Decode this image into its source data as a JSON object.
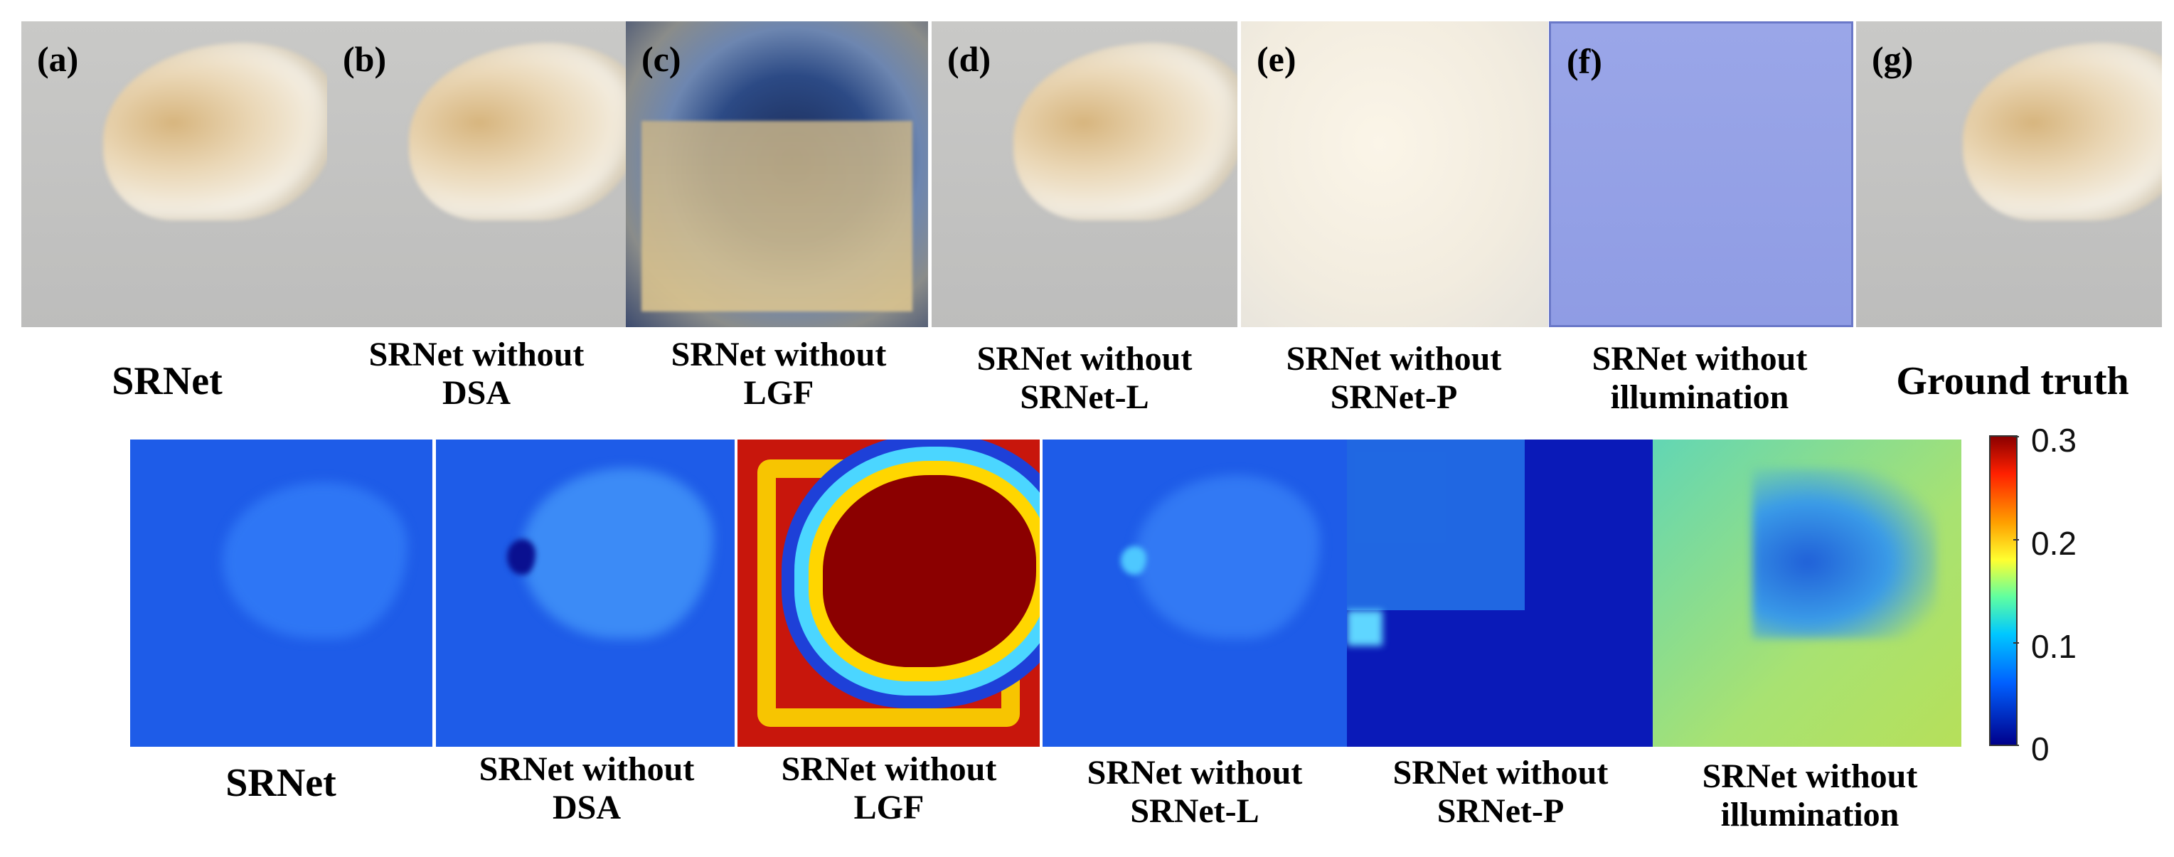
{
  "top_row": [
    {
      "tag": "(a)",
      "caption_lines": [
        "SRNet"
      ]
    },
    {
      "tag": "(b)",
      "caption_lines": [
        "SRNet without",
        "DSA"
      ]
    },
    {
      "tag": "(c)",
      "caption_lines": [
        "SRNet without",
        "LGF"
      ]
    },
    {
      "tag": "(d)",
      "caption_lines": [
        "SRNet without",
        "SRNet-L"
      ]
    },
    {
      "tag": "(e)",
      "caption_lines": [
        "SRNet without",
        "SRNet-P"
      ]
    },
    {
      "tag": "(f)",
      "caption_lines": [
        "SRNet without",
        "illumination"
      ]
    },
    {
      "tag": "(g)",
      "caption_lines": [
        "Ground truth"
      ]
    }
  ],
  "bottom_row": [
    {
      "caption_lines": [
        "SRNet"
      ]
    },
    {
      "caption_lines": [
        "SRNet without",
        "DSA"
      ]
    },
    {
      "caption_lines": [
        "SRNet without",
        "LGF"
      ]
    },
    {
      "caption_lines": [
        "SRNet without",
        "SRNet-L"
      ]
    },
    {
      "caption_lines": [
        "SRNet without",
        "SRNet-P"
      ]
    },
    {
      "caption_lines": [
        "SRNet without",
        "illumination"
      ]
    }
  ],
  "colorbar": {
    "colormap": "jet",
    "range": [
      0,
      0.3
    ],
    "ticks": [
      "0.3",
      "0.2",
      "0.1",
      "0"
    ],
    "colors": {
      "high": "#8b0000",
      "mid": "#ffff30",
      "low": "#00008b"
    }
  }
}
